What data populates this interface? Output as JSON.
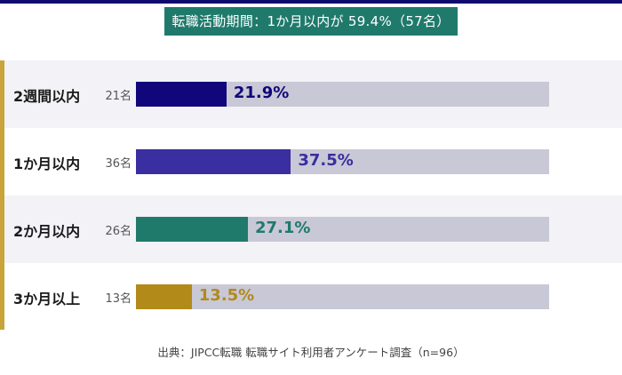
{
  "header": {
    "title": "転職活動期間：1か月以内が 59.4%（57名）"
  },
  "chart_data": {
    "type": "bar",
    "orientation": "horizontal",
    "categories": [
      "2週間以内",
      "1か月以内",
      "2か月以内",
      "3か月以上"
    ],
    "values": [
      21.9,
      37.5,
      27.1,
      13.5
    ],
    "value_labels": [
      "21.9%",
      "37.5%",
      "27.1%",
      "13.5%"
    ],
    "counts": [
      "21名",
      "36名",
      "26名",
      "13名"
    ],
    "xlim": [
      0,
      100
    ],
    "colors": [
      "#11077a",
      "#3a2ea0",
      "#1f7a6c",
      "#b28a1a"
    ],
    "track_color": "#c9c8d6"
  },
  "footer": {
    "source": "出典：JIPCC転職 転職サイト利用者アンケート調査（n=96）"
  }
}
